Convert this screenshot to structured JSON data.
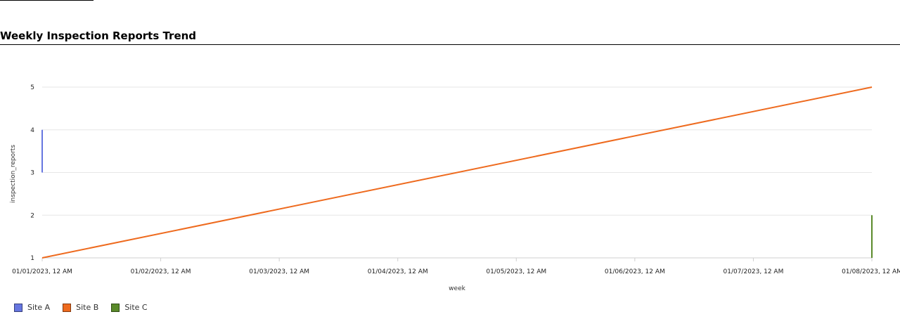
{
  "chart_data": {
    "type": "line",
    "title": "Weekly Inspection Reports Trend",
    "xlabel": "week",
    "ylabel": "inspection_reports",
    "x_ticks": [
      "01/01/2023, 12 AM",
      "01/02/2023, 12 AM",
      "01/03/2023, 12 AM",
      "01/04/2023, 12 AM",
      "01/05/2023, 12 AM",
      "01/06/2023, 12 AM",
      "01/07/2023, 12 AM",
      "01/08/2023, 12 AM"
    ],
    "y_ticks": [
      1,
      2,
      3,
      4,
      5
    ],
    "ylim": [
      1,
      5
    ],
    "xlim": [
      "01/01/2023, 12 AM",
      "01/08/2023, 12 AM"
    ],
    "grid": true,
    "legend_position": "bottom-left",
    "series": [
      {
        "name": "Site A",
        "color": "#6676e0",
        "points": [
          {
            "x": "01/01/2023, 12 AM",
            "y": 3
          },
          {
            "x": "01/01/2023, 12 AM",
            "y": 4
          }
        ]
      },
      {
        "name": "Site B",
        "color": "#ee6a1e",
        "points": [
          {
            "x": "01/01/2023, 12 AM",
            "y": 1
          },
          {
            "x": "01/08/2023, 12 AM",
            "y": 5
          }
        ]
      },
      {
        "name": "Site C",
        "color": "#5a8a2a",
        "points": [
          {
            "x": "01/08/2023, 12 AM",
            "y": 1
          },
          {
            "x": "01/08/2023, 12 AM",
            "y": 2
          }
        ]
      }
    ]
  }
}
